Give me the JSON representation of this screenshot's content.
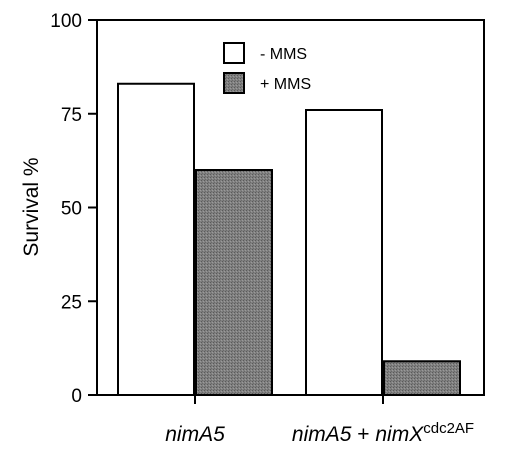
{
  "chart_data": {
    "type": "bar",
    "categories": [
      {
        "main": "nimA5",
        "plus": "",
        "gene2": "",
        "superscript": ""
      },
      {
        "main": "nimA5",
        "plus": " + ",
        "gene2": "nimX",
        "superscript": "cdc2AF"
      }
    ],
    "series": [
      {
        "name": "- MMS",
        "values": [
          83,
          76
        ],
        "color": "#ffffff"
      },
      {
        "name": "+ MMS",
        "values": [
          60,
          9
        ],
        "color": "#7a7a7a"
      }
    ],
    "ylabel": "Survival %",
    "xlabel": "",
    "title": "",
    "ylim": [
      0,
      100
    ],
    "yticks": [
      0,
      25,
      50,
      75,
      100
    ],
    "legend_position": "top-center",
    "grid": false
  }
}
